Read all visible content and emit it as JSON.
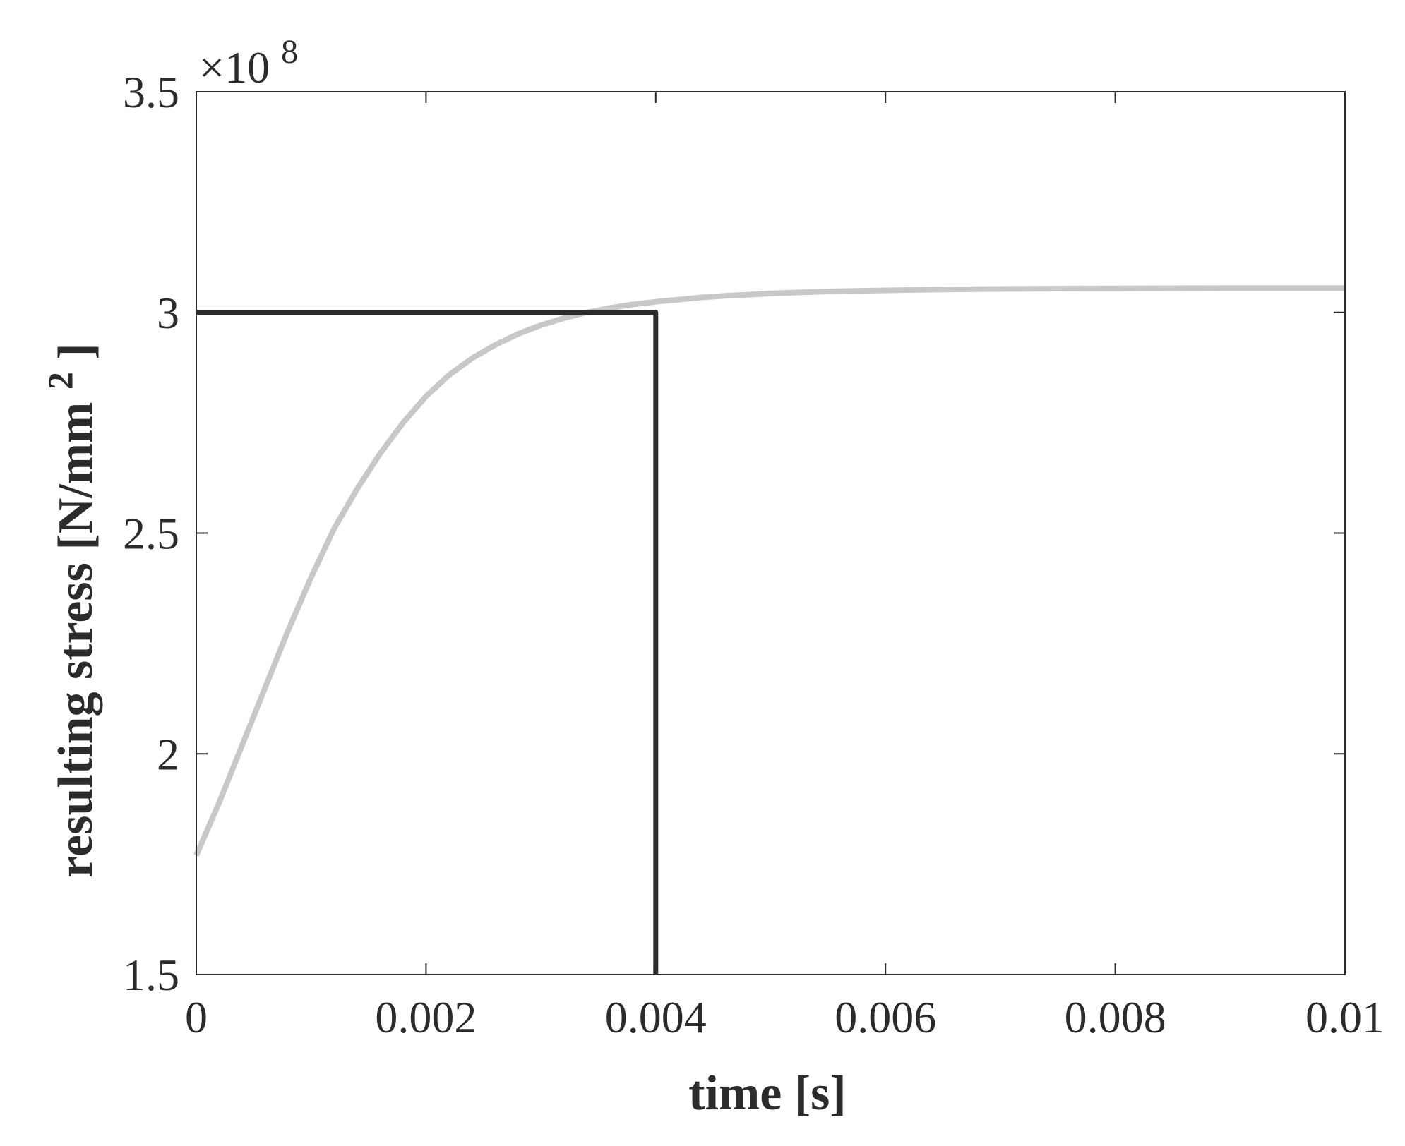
{
  "chart_data": {
    "type": "line",
    "title": "",
    "xlabel": "time [s]",
    "ylabel": {
      "text": "resulting stress [N/mm",
      "superscript": "2",
      "suffix": "]"
    },
    "xlim": [
      0,
      0.01
    ],
    "ylim": [
      150000000,
      350000000
    ],
    "x_ticks": [
      0,
      0.002,
      0.004,
      0.006,
      0.008,
      0.01
    ],
    "x_tick_labels": [
      "0",
      "0.002",
      "0.004",
      "0.006",
      "0.008",
      "0.01"
    ],
    "y_ticks": [
      150000000,
      200000000,
      250000000,
      300000000,
      350000000
    ],
    "y_tick_labels": [
      "1.5",
      "2",
      "2.5",
      "3",
      "3.5"
    ],
    "y_exponent": {
      "prefix": "×10",
      "power": "8"
    },
    "grid": false,
    "series": [
      {
        "color": "#c8c8c8",
        "x": [
          0,
          0.0002,
          0.0004,
          0.0006,
          0.0008,
          0.001,
          0.0012,
          0.0014,
          0.0016,
          0.0018,
          0.002,
          0.0022,
          0.0024,
          0.0026,
          0.0028,
          0.003,
          0.0032,
          0.0034,
          0.0036,
          0.0038,
          0.004,
          0.0042,
          0.0044,
          0.0046,
          0.0048,
          0.005,
          0.0055,
          0.006,
          0.0065,
          0.007,
          0.0075,
          0.008,
          0.0085,
          0.009,
          0.0095,
          0.01
        ],
        "y": [
          177000000,
          189000000,
          202000000,
          215000000,
          228000000,
          240000000,
          251000000,
          260000000,
          268000000,
          275000000,
          281000000,
          285800000,
          289600000,
          292600000,
          295100000,
          297100000,
          298700000,
          300000000,
          301000000,
          301800000,
          302400000,
          302900000,
          303400000,
          303750000,
          304000000,
          304300000,
          304750000,
          305000000,
          305200000,
          305320000,
          305400000,
          305450000,
          305480000,
          305500000,
          305510000,
          305520000
        ]
      },
      {
        "color": "#2b2b2b",
        "x": [
          0,
          0.004,
          0.004
        ],
        "y": [
          300000000,
          300000000,
          150000000
        ]
      }
    ]
  }
}
